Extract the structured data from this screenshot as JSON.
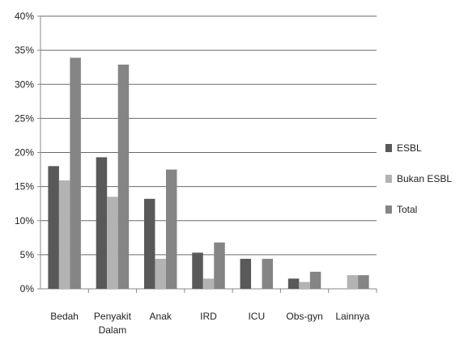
{
  "chart_data": {
    "type": "bar",
    "categories": [
      [
        "Bedah"
      ],
      [
        "Penyakit",
        "Dalam"
      ],
      [
        "Anak"
      ],
      [
        "IRD"
      ],
      [
        "ICU"
      ],
      [
        "Obs-gyn"
      ],
      [
        "Lainnya"
      ]
    ],
    "series": [
      {
        "name": "ESBL",
        "color": "#595959",
        "values": [
          18.0,
          19.3,
          13.2,
          5.3,
          4.4,
          1.5,
          0.0
        ]
      },
      {
        "name": "Bukan ESBL",
        "color": "#b3b3b3",
        "values": [
          15.9,
          13.5,
          4.4,
          1.5,
          0.0,
          1.0,
          2.0
        ]
      },
      {
        "name": "Total",
        "color": "#858585",
        "values": [
          33.9,
          32.9,
          17.5,
          6.8,
          4.4,
          2.5,
          2.0
        ]
      }
    ],
    "ylim": [
      0,
      40
    ],
    "yticks": [
      0,
      5,
      10,
      15,
      20,
      25,
      30,
      35,
      40
    ],
    "ytick_suffix": "%",
    "grid": true,
    "legend_position": "right"
  }
}
